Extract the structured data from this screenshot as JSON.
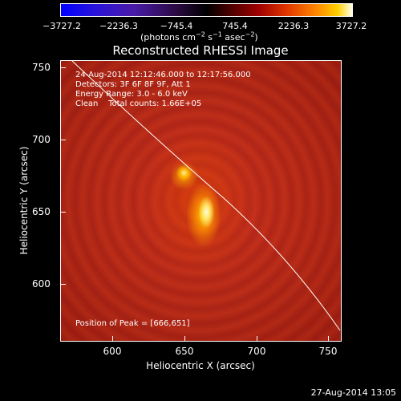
{
  "colorbar": {
    "ticks": [
      "−3727.2",
      "−2236.3",
      "−745.4",
      "745.4",
      "2236.3",
      "3727.2"
    ],
    "units": {
      "text_a": "(photons cm",
      "sup_a": "−2",
      "text_b": " s",
      "sup_b": "−1",
      "text_c": " asec",
      "sup_c": "−2",
      "text_d": ")"
    }
  },
  "title": "Reconstructed RHESSI Image",
  "annotations": {
    "time_range": "24-Aug-2014 12:12:46.000 to 12:17:56.000",
    "detectors": "Detectors: 3F 6F 8F 9F, Att 1",
    "energy": "Energy Range: 3.0 - 6.0 keV",
    "clean": "Clean    Total counts: 1.66E+05",
    "peak": "Position of Peak = [666,651]"
  },
  "axes": {
    "xlabel": "Heliocentric X (arcsec)",
    "ylabel": "Heliocentric Y (arcsec)",
    "xticks": [
      "600",
      "650",
      "700",
      "750"
    ],
    "yticks": [
      "750",
      "700",
      "650",
      "600"
    ],
    "xlim": [
      565,
      760
    ],
    "ylim": [
      560,
      755
    ]
  },
  "footer": {
    "timestamp": "27-Aug-2014 13:05"
  }
}
